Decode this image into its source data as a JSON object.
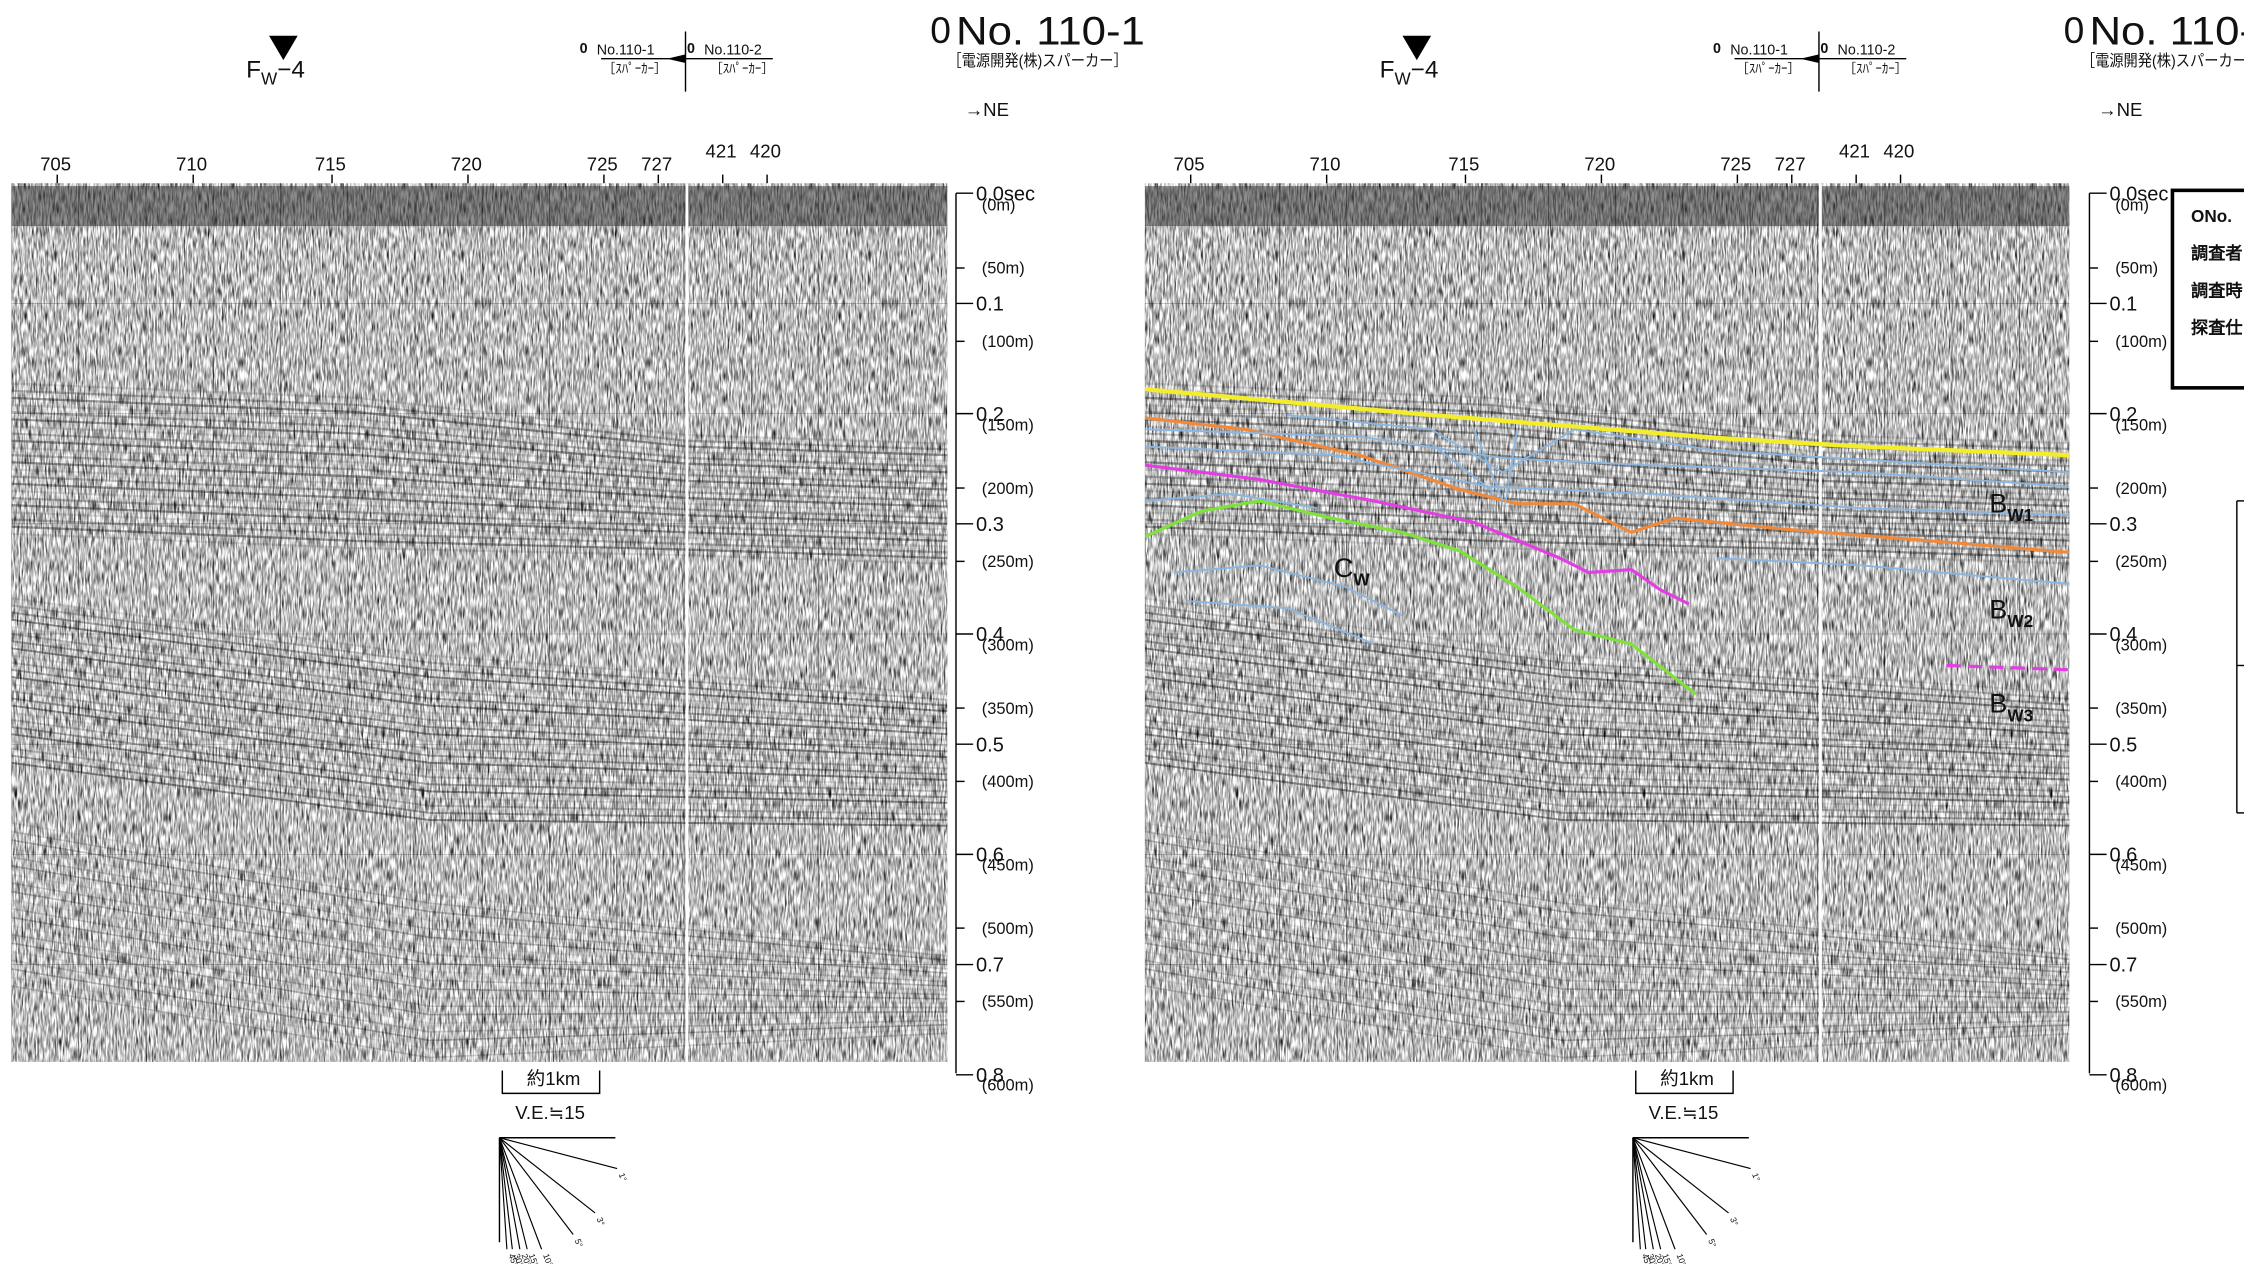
{
  "header": {
    "fault": {
      "main": "F",
      "sub": "W",
      "suffix": "−4"
    },
    "line_zero": "0",
    "line_no": "No. 110-1",
    "source": "［電源開発(株)スパーカー］",
    "direction": "→NE",
    "key": {
      "left": {
        "zero": "0",
        "line": "No.110-1",
        "source": "［ｽﾊﾟｰｶｰ］"
      },
      "right": {
        "zero": "0",
        "line": "No.110-2",
        "source": "［ｽﾊﾟｰｶｰ］"
      }
    }
  },
  "shot_points": [
    "705",
    "710",
    "715",
    "720",
    "725",
    "727",
    "421",
    "420"
  ],
  "time_axis": [
    "0.0sec",
    "0.1",
    "0.2",
    "0.3",
    "0.4",
    "0.5",
    "0.6",
    "0.7",
    "0.8"
  ],
  "depth_axis": [
    "(0m)",
    "(50m)",
    "(100m)",
    "(150m)",
    "(200m)",
    "(250m)",
    "(300m)",
    "(350m)",
    "(400m)",
    "(450m)",
    "(500m)",
    "(550m)",
    "(600m)"
  ],
  "scale": {
    "distance": "約1km",
    "vertical_exaggeration": "V.E.≒15",
    "angles": [
      "1°",
      "3°",
      "5°",
      "10°",
      "15°",
      "20°",
      "30°",
      "45°"
    ]
  },
  "interpretation": {
    "units": [
      {
        "main": "B",
        "sub": "W1"
      },
      {
        "main": "B",
        "sub": "W2"
      },
      {
        "main": "B",
        "sub": "W3"
      },
      {
        "main": "C",
        "sub": "W"
      }
    ]
  },
  "info_box": [
    "ONo.",
    "調査者",
    "調査時",
    "探査仕"
  ]
}
